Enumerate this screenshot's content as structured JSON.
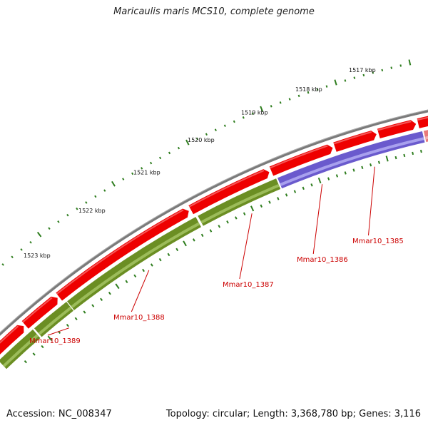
{
  "title": "Maricaulis maris MCS10, complete genome",
  "footer": {
    "accession": "Accession: NC_008347",
    "summary": "Topology: circular; Length: 3,368,780 bp; Genes: 3,116"
  },
  "colors": {
    "backbone": "#7a7a7a",
    "cds_forward": "#ee0000",
    "gene_green": "#6b8e23",
    "gene_blue": "#6a5acd",
    "tick": "#2e7d1e",
    "label": "#cc0000"
  },
  "kbp_scale": [
    {
      "label": "1517 kbp",
      "value": 1517
    },
    {
      "label": "1518 kbp",
      "value": 1518
    },
    {
      "label": "1519 kbp",
      "value": 1519
    },
    {
      "label": "1520 kbp",
      "value": 1520
    },
    {
      "label": "1521 kbp",
      "value": 1521
    },
    {
      "label": "1522 kbp",
      "value": 1522
    },
    {
      "label": "1523 kbp",
      "value": 1523
    }
  ],
  "genes": [
    {
      "label": "Mmar10_1385"
    },
    {
      "label": "Mmar10_1386"
    },
    {
      "label": "Mmar10_1387"
    },
    {
      "label": "Mmar10_1388"
    },
    {
      "label": "Mmar10_1389"
    }
  ]
}
